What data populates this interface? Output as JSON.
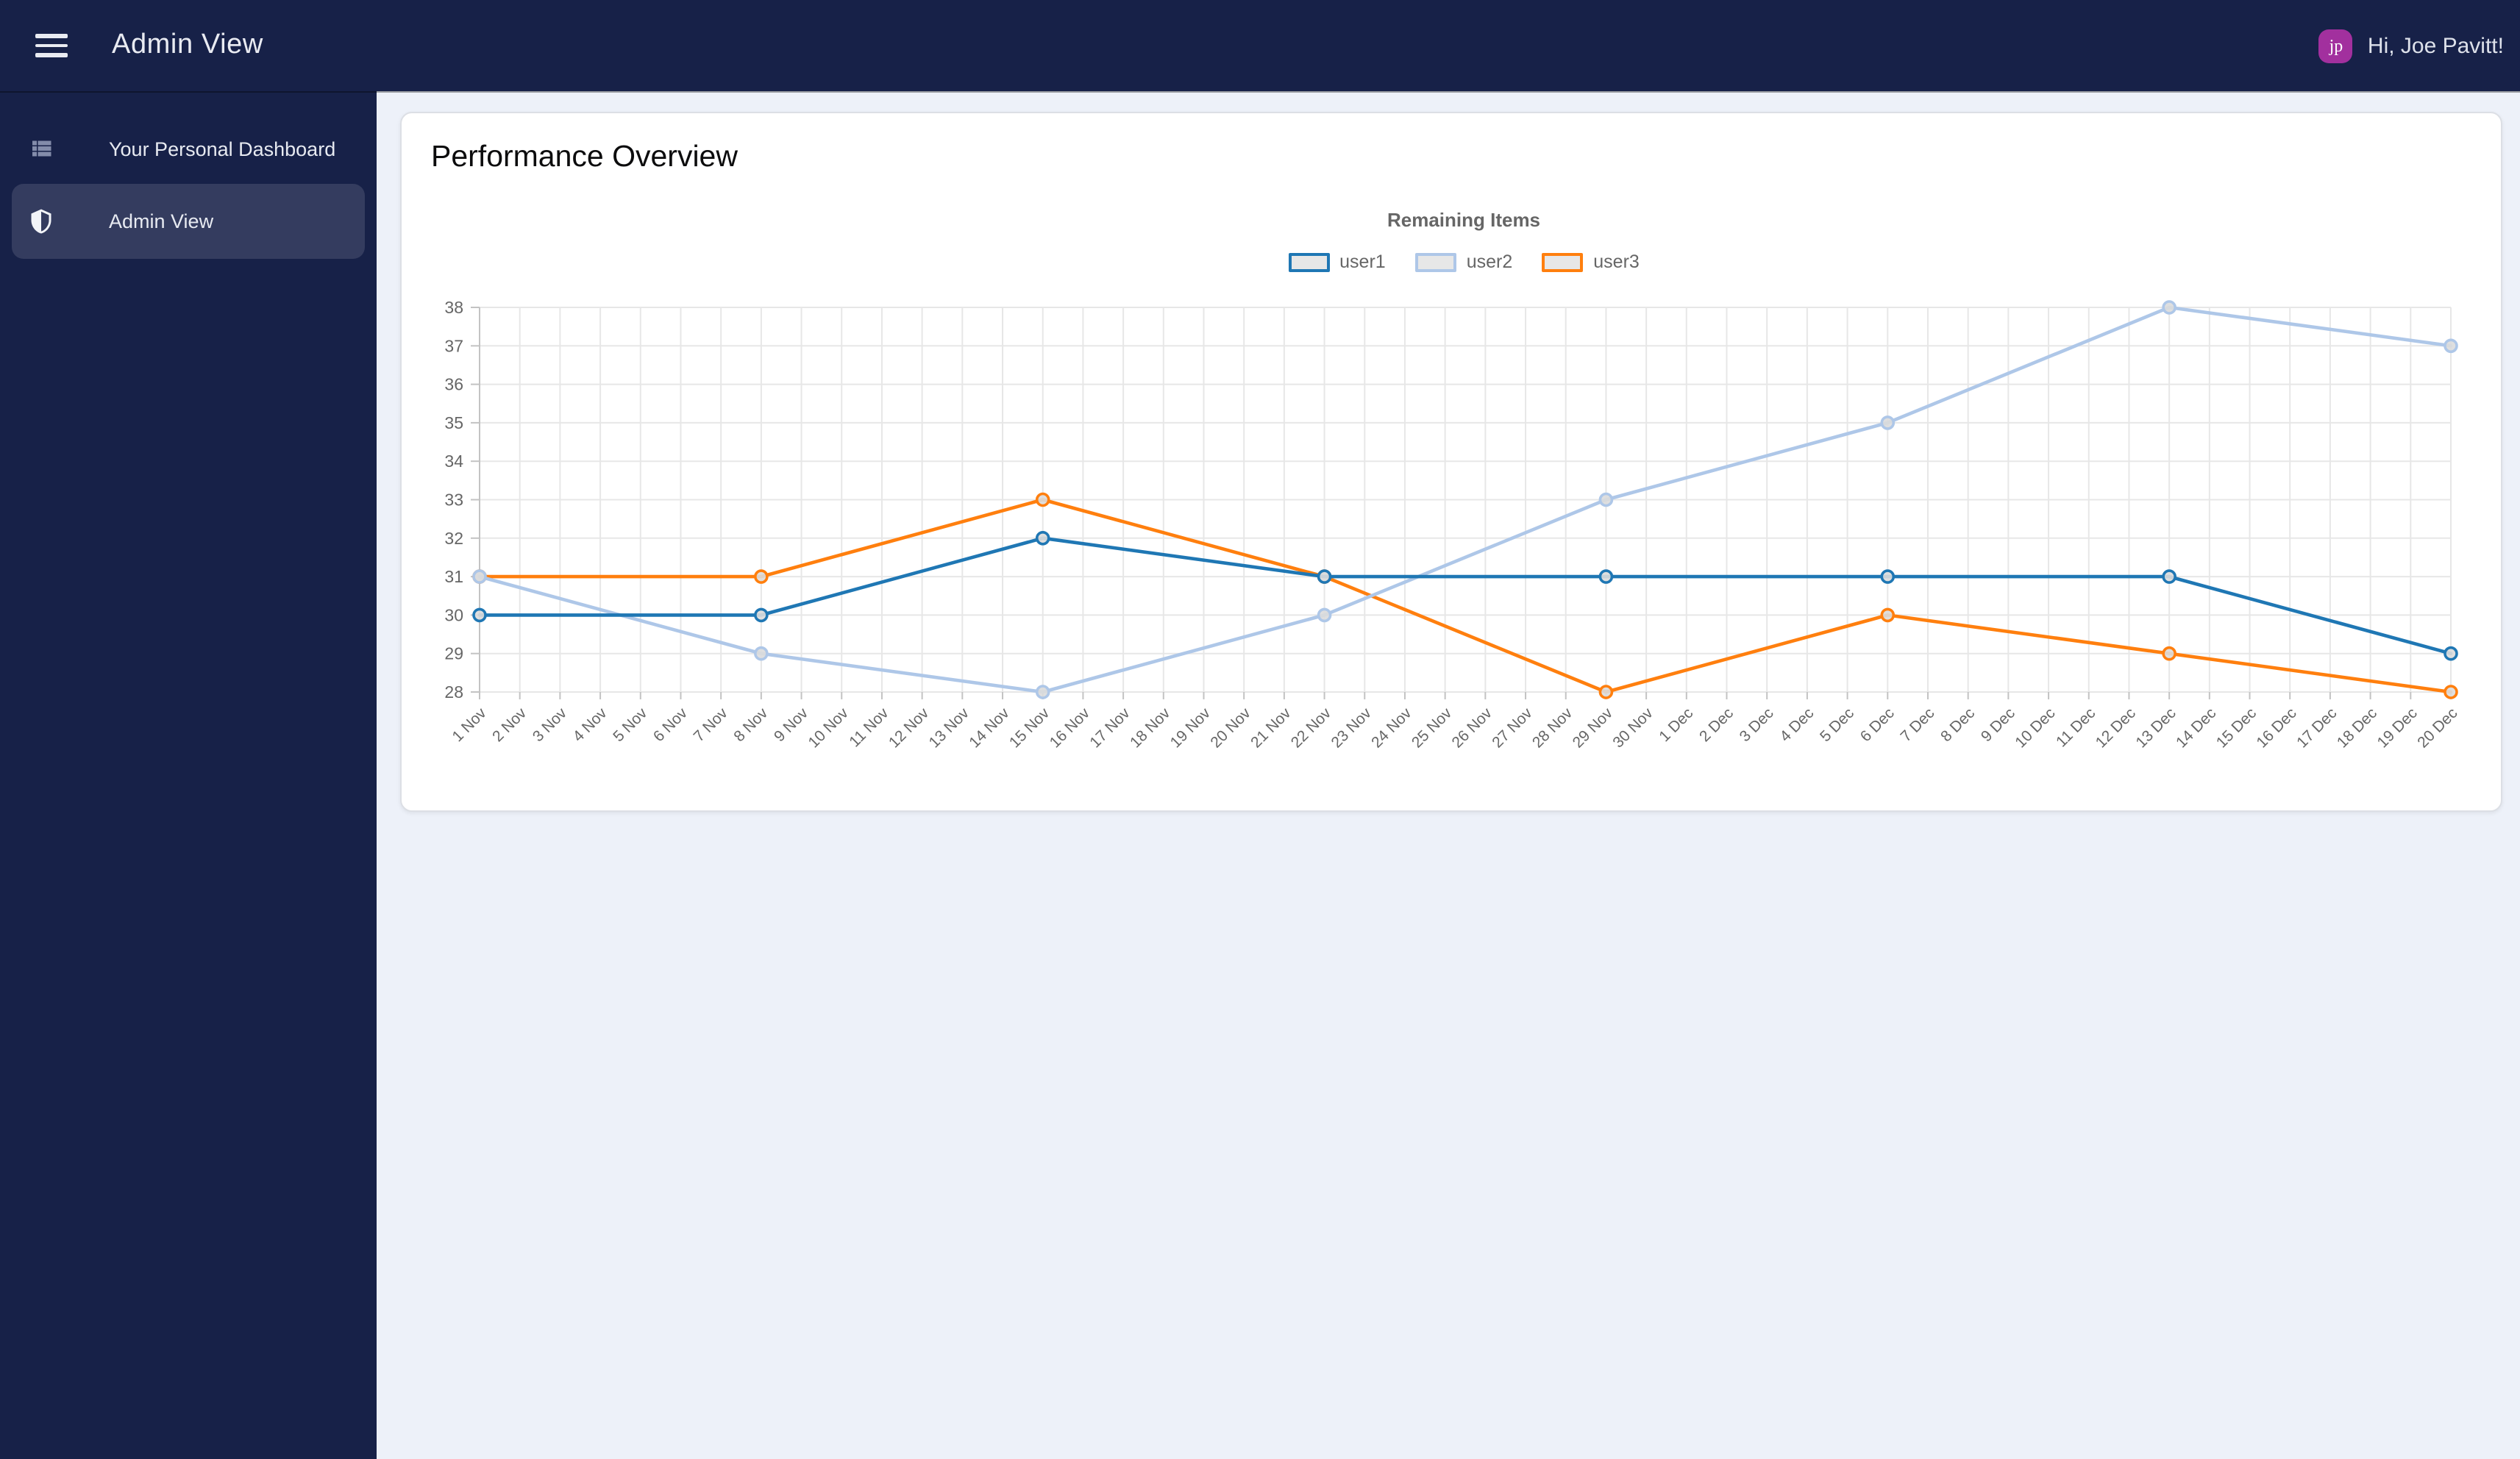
{
  "navbar": {
    "title": "Admin View",
    "greeting": "Hi, Joe Pavitt!",
    "avatar_initials": "jp"
  },
  "sidebar": {
    "items": [
      {
        "label": "Your Personal Dashboard",
        "icon": "list-icon",
        "active": false
      },
      {
        "label": "Admin View",
        "icon": "shield-icon",
        "active": true
      }
    ]
  },
  "main": {
    "card_title": "Performance Overview"
  },
  "colors": {
    "navbar_bg": "#172148",
    "sidebar_active_bg": "#343c5f",
    "page_bg": "#edf1f9",
    "avatar_bg": "#a2309e",
    "grid": "#e7e7e7",
    "axis": "#c3c3c3",
    "tick_text": "#666666",
    "marker_fill": "#dcdcdc"
  },
  "chart_data": {
    "type": "line",
    "title": "Remaining Items",
    "legend_position": "top",
    "grid": true,
    "ylim": [
      28,
      38
    ],
    "y_tick_step": 1,
    "x_labels": [
      "1 Nov",
      "2 Nov",
      "3 Nov",
      "4 Nov",
      "5 Nov",
      "6 Nov",
      "7 Nov",
      "8 Nov",
      "9 Nov",
      "10 Nov",
      "11 Nov",
      "12 Nov",
      "13 Nov",
      "14 Nov",
      "15 Nov",
      "16 Nov",
      "17 Nov",
      "18 Nov",
      "19 Nov",
      "20 Nov",
      "21 Nov",
      "22 Nov",
      "23 Nov",
      "24 Nov",
      "25 Nov",
      "26 Nov",
      "27 Nov",
      "28 Nov",
      "29 Nov",
      "30 Nov",
      "1 Dec",
      "2 Dec",
      "3 Dec",
      "4 Dec",
      "5 Dec",
      "6 Dec",
      "7 Dec",
      "8 Dec",
      "9 Dec",
      "10 Dec",
      "11 Dec",
      "12 Dec",
      "13 Dec",
      "14 Dec",
      "15 Dec",
      "16 Dec",
      "17 Dec",
      "18 Dec",
      "19 Dec",
      "20 Dec"
    ],
    "series": [
      {
        "name": "user1",
        "color": "#1f77b4",
        "x": [
          "1 Nov",
          "8 Nov",
          "15 Nov",
          "22 Nov",
          "29 Nov",
          "6 Dec",
          "13 Dec",
          "20 Dec"
        ],
        "values": [
          30,
          30,
          32,
          31,
          31,
          31,
          31,
          29
        ]
      },
      {
        "name": "user2",
        "color": "#aec7e8",
        "x": [
          "1 Nov",
          "8 Nov",
          "15 Nov",
          "22 Nov",
          "29 Nov",
          "6 Dec",
          "13 Dec",
          "20 Dec"
        ],
        "values": [
          31,
          29,
          28,
          30,
          33,
          35,
          38,
          37
        ]
      },
      {
        "name": "user3",
        "color": "#ff7f0e",
        "x": [
          "1 Nov",
          "8 Nov",
          "15 Nov",
          "22 Nov",
          "29 Nov",
          "6 Dec",
          "13 Dec",
          "20 Dec"
        ],
        "values": [
          31,
          31,
          33,
          31,
          28,
          30,
          29,
          28
        ]
      }
    ]
  }
}
